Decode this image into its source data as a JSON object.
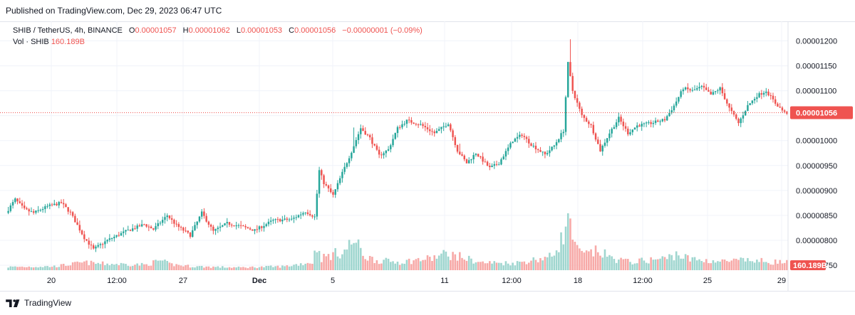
{
  "header": {
    "published": "Published on TradingView.com, Dec 29, 2023 06:47 UTC"
  },
  "legend": {
    "symbol": "SHIB / TetherUS, 4h, BINANCE",
    "o_label": "O",
    "o_value": "0.00001057",
    "h_label": "H",
    "h_value": "0.00001062",
    "l_label": "L",
    "l_value": "0.00001053",
    "c_label": "C",
    "c_value": "0.00001056",
    "change": "−0.00000001 (−0.09%)",
    "vol_label": "Vol · SHIB",
    "vol_value": "160.189B"
  },
  "footer": {
    "brand": "TradingView"
  },
  "colors": {
    "up": "#26a69a",
    "down": "#ef5350",
    "up_volume": "#9fd6cf",
    "down_volume": "#f7a9a7",
    "grid": "#f0f3fa",
    "axis_text": "#131722",
    "last_price_tag": "#ef5350"
  },
  "icons": [
    "tradingview-logo-icon"
  ],
  "chart_data": {
    "type": "candlestick",
    "symbol": "SHIB / TetherUS",
    "interval": "4h",
    "exchange": "BINANCE",
    "ylim": [
      7.4e-06,
      1.225e-05
    ],
    "y_ticks": [
      "0.00001200",
      "0.00001150",
      "0.00001100",
      "0.00001050",
      "0.00001000",
      "0.00000950",
      "0.00000900",
      "0.00000850",
      "0.00000800",
      "0.00000750"
    ],
    "x_ticks": [
      "20",
      "12:00",
      "27",
      "Dec",
      "5",
      "11",
      "12:00",
      "18",
      "12:00",
      "25",
      "29"
    ],
    "x_tick_bold": [
      false,
      false,
      false,
      true,
      false,
      false,
      false,
      false,
      false,
      false,
      false
    ],
    "last_price": "0.00001056",
    "last_volume": "160.189B",
    "grid": true,
    "anchors": [
      [
        0,
        8.55
      ],
      [
        4,
        8.82
      ],
      [
        8,
        8.62
      ],
      [
        12,
        8.55
      ],
      [
        18,
        8.68
      ],
      [
        24,
        8.75
      ],
      [
        28,
        8.55
      ],
      [
        34,
        8.05
      ],
      [
        38,
        7.82
      ],
      [
        44,
        8.0
      ],
      [
        52,
        8.18
      ],
      [
        60,
        8.32
      ],
      [
        64,
        8.22
      ],
      [
        70,
        8.5
      ],
      [
        74,
        8.3
      ],
      [
        80,
        8.1
      ],
      [
        85,
        8.55
      ],
      [
        90,
        8.18
      ],
      [
        96,
        8.34
      ],
      [
        102,
        8.28
      ],
      [
        108,
        8.2
      ],
      [
        116,
        8.4
      ],
      [
        124,
        8.42
      ],
      [
        130,
        8.58
      ],
      [
        134,
        8.47
      ],
      [
        136,
        9.4
      ],
      [
        138,
        9.15
      ],
      [
        142,
        8.9
      ],
      [
        146,
        9.35
      ],
      [
        150,
        9.78
      ],
      [
        154,
        10.25
      ],
      [
        158,
        10.05
      ],
      [
        162,
        9.7
      ],
      [
        166,
        9.82
      ],
      [
        170,
        10.25
      ],
      [
        174,
        10.4
      ],
      [
        180,
        10.32
      ],
      [
        186,
        10.15
      ],
      [
        192,
        10.35
      ],
      [
        196,
        9.8
      ],
      [
        200,
        9.55
      ],
      [
        204,
        9.75
      ],
      [
        210,
        9.45
      ],
      [
        214,
        9.55
      ],
      [
        220,
        10.0
      ],
      [
        224,
        10.12
      ],
      [
        228,
        9.92
      ],
      [
        234,
        9.72
      ],
      [
        238,
        9.9
      ],
      [
        242,
        10.2
      ],
      [
        244,
        11.55
      ],
      [
        246,
        11.0
      ],
      [
        250,
        10.5
      ],
      [
        254,
        10.3
      ],
      [
        258,
        9.8
      ],
      [
        262,
        10.15
      ],
      [
        266,
        10.45
      ],
      [
        270,
        10.15
      ],
      [
        274,
        10.3
      ],
      [
        280,
        10.35
      ],
      [
        286,
        10.42
      ],
      [
        290,
        10.7
      ],
      [
        294,
        11.05
      ],
      [
        298,
        11.0
      ],
      [
        302,
        11.08
      ],
      [
        306,
        10.92
      ],
      [
        310,
        11.05
      ],
      [
        314,
        10.65
      ],
      [
        318,
        10.35
      ],
      [
        322,
        10.7
      ],
      [
        326,
        10.9
      ],
      [
        330,
        11.0
      ],
      [
        334,
        10.75
      ],
      [
        338,
        10.56
      ]
    ],
    "volume_anchors": [
      [
        0,
        0.06
      ],
      [
        20,
        0.07
      ],
      [
        33,
        0.14
      ],
      [
        40,
        0.12
      ],
      [
        60,
        0.1
      ],
      [
        66,
        0.18
      ],
      [
        70,
        0.11
      ],
      [
        80,
        0.07
      ],
      [
        100,
        0.05
      ],
      [
        120,
        0.07
      ],
      [
        132,
        0.15
      ],
      [
        134,
        0.45
      ],
      [
        136,
        0.22
      ],
      [
        140,
        0.28
      ],
      [
        146,
        0.35
      ],
      [
        150,
        0.55
      ],
      [
        155,
        0.25
      ],
      [
        160,
        0.18
      ],
      [
        170,
        0.15
      ],
      [
        184,
        0.22
      ],
      [
        190,
        0.3
      ],
      [
        196,
        0.25
      ],
      [
        205,
        0.14
      ],
      [
        220,
        0.13
      ],
      [
        236,
        0.25
      ],
      [
        242,
        0.72
      ],
      [
        244,
        0.95
      ],
      [
        246,
        0.4
      ],
      [
        250,
        0.28
      ],
      [
        256,
        0.35
      ],
      [
        262,
        0.22
      ],
      [
        270,
        0.15
      ],
      [
        286,
        0.22
      ],
      [
        290,
        0.3
      ],
      [
        296,
        0.2
      ],
      [
        310,
        0.16
      ],
      [
        320,
        0.18
      ],
      [
        330,
        0.16
      ],
      [
        338,
        0.14
      ]
    ]
  }
}
